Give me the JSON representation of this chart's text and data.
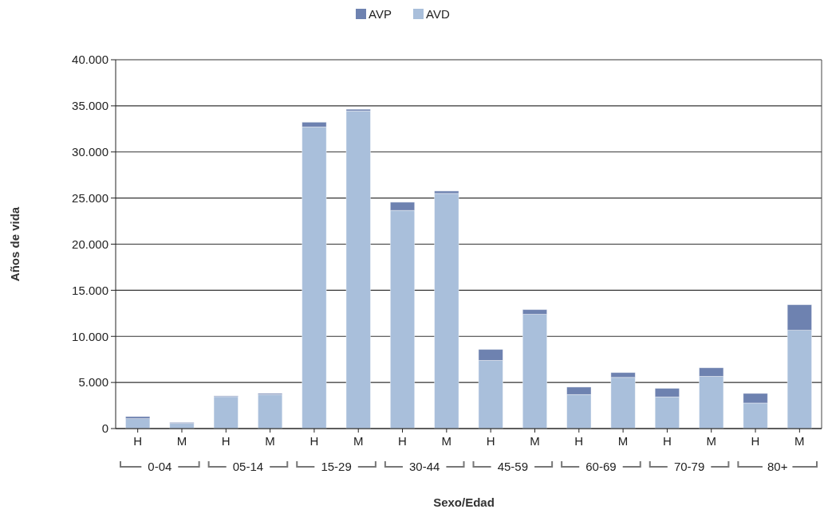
{
  "chart_data": {
    "type": "bar",
    "stacked": true,
    "xlabel": "Sexo/Edad",
    "ylabel": "Años de vida",
    "categories": [
      "H",
      "M",
      "H",
      "M",
      "H",
      "M",
      "H",
      "M",
      "H",
      "M",
      "H",
      "M",
      "H",
      "M",
      "H",
      "M"
    ],
    "series": [
      {
        "name": "AVD",
        "color": "#a9bfdb",
        "values": [
          1070,
          550,
          3470,
          3690,
          32710,
          34450,
          23660,
          25500,
          7390,
          12390,
          3690,
          5550,
          3430,
          5660,
          2770,
          10660
        ]
      },
      {
        "name": "AVP",
        "color": "#6e82b0",
        "values": [
          230,
          110,
          80,
          120,
          520,
          180,
          890,
          260,
          1190,
          510,
          810,
          520,
          930,
          930,
          1040,
          2770
        ]
      }
    ],
    "ylim": [
      0,
      40000
    ],
    "yticks": [
      0,
      {
        "value": 5000,
        "label": "5.000"
      },
      {
        "value": 10000,
        "label": "10.000"
      },
      {
        "value": 15000,
        "label": "15.000"
      },
      {
        "value": 20000,
        "label": "20.000"
      },
      {
        "value": 25000,
        "label": "25.000"
      },
      {
        "value": 30000,
        "label": "30.000"
      },
      {
        "value": 35000,
        "label": "35.000"
      },
      {
        "value": 40000,
        "label": "40.000"
      }
    ],
    "annotations": [
      "0-04",
      "05-14",
      "15-29",
      "30-44",
      "45-59",
      "60-69",
      "70-79",
      "80+"
    ],
    "grid": "y",
    "legend": "top"
  }
}
